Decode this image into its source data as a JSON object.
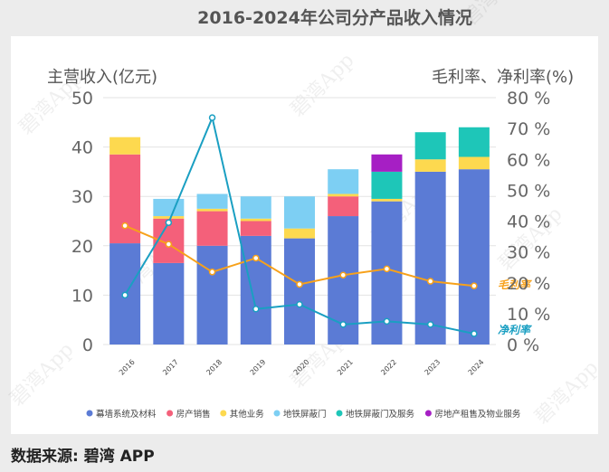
{
  "page": {
    "title": "2016-2024年公司分产品收入情况",
    "source": "数据来源: 碧湾 APP",
    "watermark": "碧湾App"
  },
  "chart_data": {
    "type": "bar",
    "stacked": true,
    "title": "2016-2024年公司分产品收入情况",
    "categories": [
      "2016",
      "2017",
      "2018",
      "2019",
      "2020",
      "2021",
      "2022",
      "2023",
      "2024"
    ],
    "ylabel_left": "主营收入(亿元)",
    "ylabel_right": "毛利率、净利率(%)",
    "ylim_left": [
      0,
      50
    ],
    "ylim_right": [
      0,
      80
    ],
    "yticks_left": [
      "0",
      "10",
      "20",
      "30",
      "40",
      "50"
    ],
    "yticks_right": [
      "0 %",
      "10 %",
      "20 %",
      "30 %",
      "40 %",
      "50 %",
      "60 %",
      "70 %",
      "80 %"
    ],
    "series": [
      {
        "name": "幕墙系统及材料",
        "color": "#5b7bd5",
        "values": [
          20.5,
          16.5,
          20.0,
          22.0,
          21.5,
          26.0,
          29.0,
          35.0,
          35.5
        ]
      },
      {
        "name": "房产销售",
        "color": "#f4607a",
        "values": [
          18.0,
          9.0,
          7.0,
          3.0,
          0,
          4.0,
          0,
          0,
          0
        ]
      },
      {
        "name": "其他业务",
        "color": "#fdd94f",
        "values": [
          3.5,
          0.5,
          0.5,
          0.5,
          2.0,
          0.5,
          0.5,
          2.5,
          2.5
        ]
      },
      {
        "name": "地铁屏蔽门",
        "color": "#7dcff3",
        "values": [
          0,
          3.5,
          3.0,
          4.5,
          6.5,
          5.0,
          0,
          0,
          0
        ]
      },
      {
        "name": "地铁屏蔽门及服务",
        "color": "#1ec6b8",
        "values": [
          0,
          0,
          0,
          0,
          0,
          0,
          5.5,
          5.5,
          6.0
        ]
      },
      {
        "name": "房地产租售及物业服务",
        "color": "#a61fc4",
        "values": [
          0,
          0,
          0,
          0,
          0,
          0,
          3.5,
          0,
          0
        ]
      }
    ],
    "lines": [
      {
        "name": "毛利率",
        "color": "#f7a11a",
        "values": [
          38.5,
          32.5,
          23.5,
          28.0,
          19.5,
          22.5,
          24.5,
          20.5,
          19.0
        ]
      },
      {
        "name": "净利率",
        "color": "#1a9fc2",
        "values": [
          16.0,
          39.5,
          73.5,
          11.5,
          13.0,
          6.5,
          7.5,
          6.5,
          3.5
        ]
      }
    ],
    "legend_position": "bottom"
  }
}
